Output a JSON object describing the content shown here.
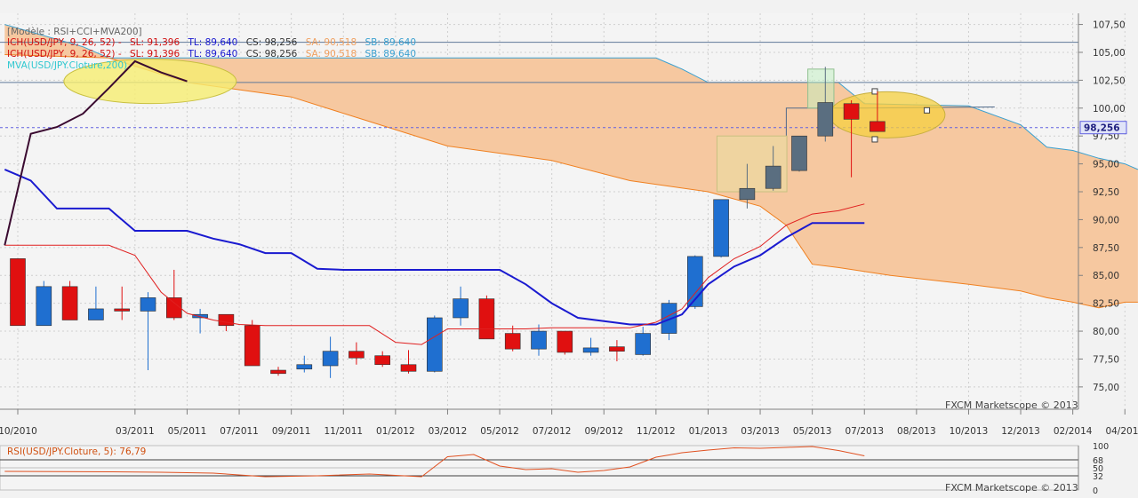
{
  "chart_data": {
    "type": "candlestick",
    "instrument": "USD/JPY",
    "legend": {
      "model": "[Modèle : RSI+CCI+MVA200]",
      "ich_label": "ICH(USD/JPY, 9, 26, 52) -",
      "sl": "SL: 91,396",
      "tl": "TL: 89,640",
      "cs": "CS: 98,256",
      "sa": "SA: 90,518",
      "sb": "SB: 89,640",
      "mva": "MVA(USD/JPY.Cloture,200)"
    },
    "y_ticks": [
      "107,50",
      "105,00",
      "102,50",
      "100,00",
      "97,50",
      "95,00",
      "92,50",
      "90,00",
      "87,50",
      "85,00",
      "82,50",
      "80,00",
      "77,50",
      "75,00"
    ],
    "y_tick_values": [
      107.5,
      105,
      102.5,
      100,
      97.5,
      95,
      92.5,
      90,
      87.5,
      85,
      82.5,
      80,
      77.5,
      75
    ],
    "ylim": [
      73,
      108.5
    ],
    "x_ticks": [
      "10/2010",
      "03/2011",
      "05/2011",
      "07/2011",
      "09/2011",
      "11/2011",
      "01/2012",
      "03/2012",
      "05/2012",
      "07/2012",
      "09/2012",
      "11/2012",
      "01/2013",
      "03/2013",
      "05/2013",
      "07/2013",
      "08/2013",
      "10/2013",
      "12/2013",
      "02/2014",
      "04/2014"
    ],
    "x_tick_index": [
      0,
      4.5,
      6.5,
      8.5,
      10.5,
      12.5,
      14.5,
      16.5,
      18.5,
      20.5,
      22.5,
      24.5,
      26.5,
      28.5,
      30.5,
      32.5,
      34.5,
      36.5,
      38.5,
      40.5,
      42.5
    ],
    "candles": [
      {
        "o": 86.5,
        "h": 86.5,
        "l": 80.5,
        "c": 80.5
      },
      {
        "o": 80.5,
        "h": 84.5,
        "l": 80.5,
        "c": 84.0
      },
      {
        "o": 84.0,
        "h": 84.5,
        "l": 81.0,
        "c": 81.0
      },
      {
        "o": 81.0,
        "h": 84.0,
        "l": 81.0,
        "c": 82.0
      },
      {
        "o": 82.0,
        "h": 84.0,
        "l": 81.0,
        "c": 81.8
      },
      {
        "o": 81.8,
        "h": 83.5,
        "l": 76.5,
        "c": 83.0
      },
      {
        "o": 83.0,
        "h": 85.5,
        "l": 81.0,
        "c": 81.2
      },
      {
        "o": 81.2,
        "h": 82.0,
        "l": 79.8,
        "c": 81.5
      },
      {
        "o": 81.5,
        "h": 81.5,
        "l": 80.0,
        "c": 80.5
      },
      {
        "o": 80.5,
        "h": 81.0,
        "l": 76.9,
        "c": 76.9
      },
      {
        "o": 76.5,
        "h": 76.8,
        "l": 76.0,
        "c": 76.2
      },
      {
        "o": 76.6,
        "h": 77.8,
        "l": 76.3,
        "c": 77.0
      },
      {
        "o": 76.9,
        "h": 79.5,
        "l": 75.8,
        "c": 78.2
      },
      {
        "o": 78.2,
        "h": 79.0,
        "l": 77.0,
        "c": 77.6
      },
      {
        "o": 77.8,
        "h": 78.2,
        "l": 76.8,
        "c": 77.0
      },
      {
        "o": 77.0,
        "h": 78.3,
        "l": 76.2,
        "c": 76.4
      },
      {
        "o": 76.4,
        "h": 81.4,
        "l": 76.3,
        "c": 81.2
      },
      {
        "o": 81.2,
        "h": 84.0,
        "l": 80.5,
        "c": 82.9
      },
      {
        "o": 82.9,
        "h": 83.2,
        "l": 79.3,
        "c": 79.3
      },
      {
        "o": 79.8,
        "h": 80.5,
        "l": 78.2,
        "c": 78.4
      },
      {
        "o": 78.4,
        "h": 80.6,
        "l": 77.8,
        "c": 80.0
      },
      {
        "o": 80.0,
        "h": 80.0,
        "l": 77.9,
        "c": 78.1
      },
      {
        "o": 78.1,
        "h": 79.4,
        "l": 77.8,
        "c": 78.5
      },
      {
        "o": 78.6,
        "h": 79.2,
        "l": 77.3,
        "c": 78.2
      },
      {
        "o": 77.9,
        "h": 80.4,
        "l": 77.8,
        "c": 79.8
      },
      {
        "o": 79.8,
        "h": 82.8,
        "l": 79.2,
        "c": 82.5
      },
      {
        "o": 82.2,
        "h": 86.8,
        "l": 82.0,
        "c": 86.7
      },
      {
        "o": 86.7,
        "h": 91.8,
        "l": 86.6,
        "c": 91.8
      },
      {
        "o": 91.8,
        "h": 95.0,
        "l": 91.0,
        "c": 92.8
      },
      {
        "o": 92.8,
        "h": 96.6,
        "l": 92.6,
        "c": 94.8
      },
      {
        "o": 94.4,
        "h": 97.5,
        "l": 94.3,
        "c": 97.5
      },
      {
        "o": 97.5,
        "h": 103.7,
        "l": 97.0,
        "c": 100.5
      },
      {
        "o": 100.4,
        "h": 100.7,
        "l": 93.8,
        "c": 99.0
      },
      {
        "o": 98.8,
        "h": 101.5,
        "l": 97.9,
        "c": 97.9
      }
    ],
    "series": [
      {
        "values": [
          [
            -0.5,
            94.5
          ],
          [
            0.5,
            93.5
          ],
          [
            1.5,
            91.0
          ],
          [
            2.5,
            91.0
          ],
          [
            3.5,
            91.0
          ],
          [
            4.5,
            89.0
          ],
          [
            5.5,
            89.0
          ],
          [
            6.5,
            89.0
          ],
          [
            7.5,
            88.3
          ],
          [
            8.5,
            87.8
          ],
          [
            9.5,
            87.0
          ],
          [
            10.5,
            87.0
          ],
          [
            11.5,
            85.6
          ],
          [
            12.5,
            85.5
          ],
          [
            13.5,
            85.5
          ],
          [
            14.5,
            85.5
          ],
          [
            15.5,
            85.5
          ],
          [
            16.5,
            85.5
          ],
          [
            17.5,
            85.5
          ],
          [
            18.5,
            85.5
          ],
          [
            19.5,
            84.2
          ],
          [
            20.5,
            82.5
          ],
          [
            21.5,
            81.2
          ],
          [
            22.5,
            80.9
          ],
          [
            23.5,
            80.6
          ],
          [
            24.5,
            80.6
          ],
          [
            25.5,
            81.5
          ],
          [
            26.5,
            84.2
          ],
          [
            27.5,
            85.8
          ],
          [
            28.5,
            86.8
          ],
          [
            29.5,
            88.4
          ],
          [
            30.5,
            89.7
          ],
          [
            31.5,
            89.7
          ],
          [
            32.5,
            89.7
          ]
        ]
      },
      {
        "values": [
          [
            -0.5,
            87.7
          ],
          [
            0.5,
            87.7
          ],
          [
            1.5,
            87.7
          ],
          [
            2.5,
            87.7
          ],
          [
            3.5,
            87.7
          ],
          [
            4.5,
            86.8
          ],
          [
            5.5,
            83.5
          ],
          [
            6.5,
            81.6
          ],
          [
            7.5,
            81.0
          ],
          [
            8.5,
            80.6
          ],
          [
            9.5,
            80.5
          ],
          [
            10.5,
            80.5
          ],
          [
            11.5,
            80.5
          ],
          [
            12.5,
            80.5
          ],
          [
            13.5,
            80.5
          ],
          [
            14.5,
            79.0
          ],
          [
            15.5,
            78.8
          ],
          [
            16.5,
            80.2
          ],
          [
            17.5,
            80.2
          ],
          [
            18.5,
            80.2
          ],
          [
            19.5,
            80.2
          ],
          [
            20.5,
            80.3
          ],
          [
            21.5,
            80.3
          ],
          [
            22.5,
            80.3
          ],
          [
            23.5,
            80.3
          ],
          [
            24.5,
            80.8
          ],
          [
            25.5,
            82.0
          ],
          [
            26.5,
            84.8
          ],
          [
            27.5,
            86.5
          ],
          [
            28.5,
            87.6
          ],
          [
            29.5,
            89.5
          ],
          [
            30.5,
            90.5
          ],
          [
            31.5,
            90.8
          ],
          [
            32.5,
            91.4
          ]
        ]
      },
      {
        "values": [
          [
            -0.5,
            87.7
          ],
          [
            0.5,
            97.7
          ],
          [
            1.5,
            98.3
          ],
          [
            2.5,
            99.5
          ],
          [
            3.5,
            101.8
          ],
          [
            4.5,
            104.2
          ],
          [
            5.5,
            103.2
          ],
          [
            6.5,
            102.4
          ]
        ]
      }
    ],
    "cloud_upper": [
      [
        -0.5,
        107.5
      ],
      [
        2.5,
        105.5
      ],
      [
        3.5,
        104.5
      ],
      [
        12.5,
        104.5
      ],
      [
        24.5,
        104.5
      ],
      [
        25.5,
        103.5
      ],
      [
        26.5,
        102.3
      ],
      [
        31.5,
        102.3
      ],
      [
        32.5,
        100.4
      ],
      [
        36.5,
        100.2
      ],
      [
        38.5,
        98.5
      ],
      [
        39.5,
        96.5
      ],
      [
        40.5,
        96.2
      ],
      [
        41.5,
        95.5
      ],
      [
        42.5,
        95.0
      ],
      [
        43.0,
        94.5
      ]
    ],
    "cloud_lower": [
      [
        -0.5,
        104.8
      ],
      [
        3.5,
        104.5
      ],
      [
        6.5,
        102.3
      ],
      [
        10.5,
        101.0
      ],
      [
        13.5,
        98.8
      ],
      [
        16.5,
        96.6
      ],
      [
        20.5,
        95.3
      ],
      [
        23.5,
        93.5
      ],
      [
        26.5,
        92.5
      ],
      [
        28.5,
        91.2
      ],
      [
        29.5,
        89.5
      ],
      [
        30.5,
        86.0
      ],
      [
        31.5,
        85.7
      ],
      [
        33.5,
        85.0
      ],
      [
        36.5,
        84.2
      ],
      [
        38.5,
        83.6
      ],
      [
        39.5,
        83.0
      ],
      [
        40.5,
        82.6
      ],
      [
        41.5,
        82.1
      ],
      [
        42.5,
        82.6
      ],
      [
        43.0,
        82.6
      ]
    ],
    "current_price": 98.256,
    "current_price_label": "98,256",
    "hlines": [
      105.9,
      102.3
    ],
    "rsi": {
      "label": "RSI(USD/JPY.Cloture, 5): 76,79",
      "ticks": [
        "100",
        "68",
        "50",
        "32",
        "0"
      ],
      "tick_values": [
        100,
        68,
        50,
        32,
        0
      ],
      "values": [
        [
          -0.5,
          42
        ],
        [
          3.5,
          41
        ],
        [
          5.5,
          40
        ],
        [
          7.5,
          38
        ],
        [
          9.5,
          30
        ],
        [
          11.5,
          32
        ],
        [
          13.5,
          36
        ],
        [
          15.5,
          30
        ],
        [
          16.5,
          75
        ],
        [
          17.5,
          80
        ],
        [
          18.5,
          54
        ],
        [
          19.5,
          46
        ],
        [
          20.5,
          48
        ],
        [
          21.5,
          40
        ],
        [
          22.5,
          44
        ],
        [
          23.5,
          52
        ],
        [
          24.5,
          74
        ],
        [
          25.5,
          84
        ],
        [
          26.5,
          90
        ],
        [
          27.5,
          95
        ],
        [
          28.5,
          94
        ],
        [
          29.5,
          96
        ],
        [
          30.5,
          98
        ],
        [
          31.5,
          89
        ],
        [
          32.5,
          77
        ]
      ]
    },
    "watermark": "FXCM Marketscope © 2013"
  }
}
